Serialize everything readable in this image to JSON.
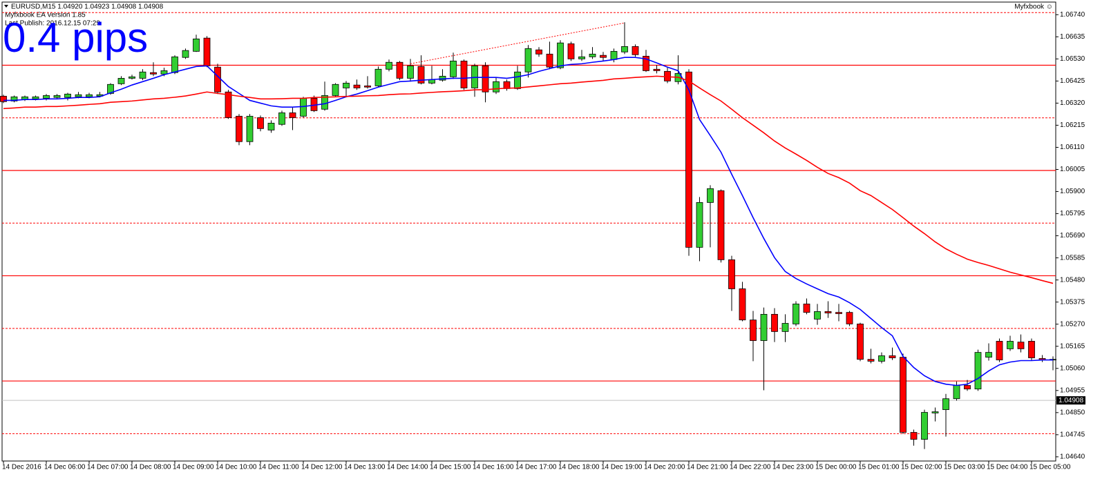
{
  "chart_data": {
    "type": "candlestick",
    "header": "EURUSD,M15  1.04920 1.04923 1.04908 1.04908",
    "ea_version": "Myfxbook EA Version 1.85",
    "last_publish": "Last Publish: 2016.12.15 07:29",
    "annotation": "0.4 pips",
    "brand": "Myfxbook ☺",
    "categories": [
      "14 Dec 2016",
      null,
      null,
      null,
      "14 Dec 06:00",
      null,
      null,
      null,
      "14 Dec 07:00",
      null,
      null,
      null,
      "14 Dec 08:00",
      null,
      null,
      null,
      "14 Dec 09:00",
      null,
      null,
      null,
      "14 Dec 10:00",
      null,
      null,
      null,
      "14 Dec 11:00",
      null,
      null,
      null,
      "14 Dec 12:00",
      null,
      null,
      null,
      "14 Dec 13:00",
      null,
      null,
      null,
      "14 Dec 14:00",
      null,
      null,
      null,
      "14 Dec 15:00",
      null,
      null,
      null,
      "14 Dec 16:00",
      null,
      null,
      null,
      "14 Dec 17:00",
      null,
      null,
      null,
      "14 Dec 18:00",
      null,
      null,
      null,
      "14 Dec 19:00",
      null,
      null,
      null,
      "14 Dec 20:00",
      null,
      null,
      null,
      "14 Dec 21:00",
      null,
      null,
      null,
      "14 Dec 22:00",
      null,
      null,
      null,
      "14 Dec 23:00",
      null,
      null,
      null,
      "15 Dec 00:00",
      null,
      null,
      null,
      "15 Dec 01:00",
      null,
      null,
      null,
      "15 Dec 02:00",
      null,
      null,
      null,
      "15 Dec 03:00",
      null,
      null,
      null,
      "15 Dec 04:00",
      null,
      null,
      null,
      "15 Dec 05:00",
      null,
      null
    ],
    "open": [
      1.06353,
      1.0633,
      1.06337,
      1.0634,
      1.06343,
      1.06347,
      1.06347,
      1.0635,
      1.0635,
      1.06353,
      1.06366,
      1.06412,
      1.06438,
      1.06438,
      1.06465,
      1.06458,
      1.06465,
      1.06537,
      1.06566,
      1.06629,
      1.06491,
      1.06373,
      1.06258,
      1.06137,
      1.06251,
      1.06192,
      1.06219,
      1.06274,
      1.06258,
      1.06343,
      1.06291,
      1.06356,
      1.06392,
      1.06406,
      1.06402,
      1.06402,
      1.06481,
      1.06514,
      1.06438,
      1.06494,
      1.06415,
      1.06429,
      1.06445,
      1.0652,
      1.06392,
      1.06497,
      1.06373,
      1.06422,
      1.06389,
      1.06468,
      1.06573,
      1.06553,
      1.06488,
      1.06602,
      1.0653,
      1.0654,
      1.06547,
      1.06527,
      1.06563,
      1.06589,
      1.06543,
      1.06481,
      1.06471,
      1.06422,
      1.06468,
      1.05635,
      1.05848,
      1.05904,
      1.05576,
      1.05438,
      1.0529,
      1.05192,
      1.05317,
      1.05235,
      1.05271,
      1.05366,
      1.05294,
      1.0533,
      1.05326,
      1.05326,
      1.05271,
      1.05103,
      1.05094,
      1.0512,
      1.05113,
      1.04756,
      1.04723,
      1.04848,
      1.04864,
      1.04916,
      1.04979,
      1.04962,
      1.05113,
      1.05189,
      1.05153,
      1.05185,
      1.05189,
      1.05107,
      1.051
    ],
    "high": [
      1.0636,
      1.06356,
      1.06356,
      1.06356,
      1.06363,
      1.06363,
      1.06369,
      1.06373,
      1.06369,
      1.06373,
      1.06415,
      1.06448,
      1.06455,
      1.06481,
      1.06514,
      1.06488,
      1.06547,
      1.06579,
      1.06645,
      1.06638,
      1.06507,
      1.06383,
      1.06268,
      1.06268,
      1.06261,
      1.06238,
      1.06284,
      1.06301,
      1.0635,
      1.06356,
      1.06422,
      1.06415,
      1.06425,
      1.06432,
      1.06448,
      1.06494,
      1.06527,
      1.0652,
      1.0653,
      1.06547,
      1.06497,
      1.06481,
      1.0656,
      1.06527,
      1.06507,
      1.06514,
      1.06442,
      1.06432,
      1.06497,
      1.06596,
      1.06586,
      1.06612,
      1.06619,
      1.06612,
      1.06573,
      1.06586,
      1.06563,
      1.06579,
      1.06704,
      1.06599,
      1.06573,
      1.06501,
      1.06488,
      1.06547,
      1.06481,
      1.05874,
      1.0593,
      1.0591,
      1.05595,
      1.05471,
      1.05333,
      1.05349,
      1.05346,
      1.05317,
      1.05379,
      1.05392,
      1.05366,
      1.05379,
      1.05366,
      1.05333,
      1.05277,
      1.05153,
      1.05136,
      1.05159,
      1.0513,
      1.04769,
      1.04864,
      1.04874,
      1.04939,
      1.04998,
      1.05005,
      1.05149,
      1.05179,
      1.05202,
      1.05215,
      1.05221,
      1.05202,
      1.05123,
      1.05117
    ],
    "low": [
      1.0632,
      1.06324,
      1.0633,
      1.06333,
      1.06333,
      1.0634,
      1.06333,
      1.06343,
      1.06343,
      1.06347,
      1.0636,
      1.06406,
      1.06432,
      1.06429,
      1.06448,
      1.06448,
      1.06458,
      1.0653,
      1.06563,
      1.06491,
      1.06363,
      1.06245,
      1.0612,
      1.0612,
      1.06186,
      1.06179,
      1.06212,
      1.06192,
      1.06251,
      1.06278,
      1.06284,
      1.0635,
      1.0635,
      1.06383,
      1.06389,
      1.06396,
      1.06471,
      1.06429,
      1.06422,
      1.06409,
      1.06409,
      1.06422,
      1.06435,
      1.06383,
      1.0635,
      1.06324,
      1.06363,
      1.06379,
      1.06383,
      1.06442,
      1.0654,
      1.06481,
      1.06481,
      1.0652,
      1.0652,
      1.0653,
      1.0652,
      1.06514,
      1.06553,
      1.0654,
      1.06468,
      1.06461,
      1.06415,
      1.06409,
      1.05595,
      1.05569,
      1.05635,
      1.05563,
      1.05333,
      1.05284,
      1.05094,
      1.04956,
      1.05185,
      1.05185,
      1.05261,
      1.05317,
      1.05267,
      1.053,
      1.05284,
      1.05261,
      1.05094,
      1.05084,
      1.05084,
      1.051,
      1.04749,
      1.04693,
      1.04677,
      1.04808,
      1.04736,
      1.04907,
      1.04953,
      1.04953,
      1.05097,
      1.0509,
      1.05143,
      1.05136,
      1.05097,
      1.0509,
      1.05051
    ],
    "close": [
      1.06327,
      1.0635,
      1.0635,
      1.0635,
      1.06356,
      1.06356,
      1.06363,
      1.0636,
      1.0636,
      1.0636,
      1.06409,
      1.06438,
      1.06445,
      1.06468,
      1.06458,
      1.06474,
      1.0654,
      1.0657,
      1.06625,
      1.06497,
      1.06373,
      1.06251,
      1.06137,
      1.06258,
      1.06199,
      1.06225,
      1.06274,
      1.06251,
      1.06343,
      1.06284,
      1.06356,
      1.06409,
      1.06415,
      1.06392,
      1.06396,
      1.06481,
      1.06514,
      1.06438,
      1.06497,
      1.06415,
      1.06432,
      1.06448,
      1.0652,
      1.06392,
      1.06497,
      1.06373,
      1.06422,
      1.06389,
      1.06468,
      1.06579,
      1.06553,
      1.06491,
      1.06606,
      1.0653,
      1.0654,
      1.06553,
      1.06537,
      1.06566,
      1.06589,
      1.0655,
      1.06474,
      1.06474,
      1.06425,
      1.06461,
      1.05635,
      1.05848,
      1.05914,
      1.05576,
      1.05438,
      1.0529,
      1.05192,
      1.05317,
      1.05235,
      1.05274,
      1.05366,
      1.05326,
      1.0533,
      1.05323,
      1.0532,
      1.05271,
      1.05103,
      1.05094,
      1.0512,
      1.0511,
      1.04756,
      1.04723,
      1.04851,
      1.04854,
      1.04916,
      1.04979,
      1.04962,
      1.05136,
      1.05136,
      1.051,
      1.05189,
      1.05153,
      1.0511,
      1.051,
      1.05103
    ],
    "bull_color": "#32cd32",
    "bear_color": "#ff0000",
    "overlays": [
      {
        "color": "#0000ff",
        "values": [
          1.06333,
          1.06333,
          1.06337,
          1.06337,
          1.0634,
          1.0634,
          1.06343,
          1.06347,
          1.06347,
          1.0635,
          1.06369,
          1.06386,
          1.06406,
          1.06422,
          1.06438,
          1.06455,
          1.06468,
          1.06481,
          1.06494,
          1.06497,
          1.06448,
          1.06399,
          1.06366,
          1.06333,
          1.0632,
          1.06307,
          1.06301,
          1.06301,
          1.06304,
          1.0631,
          1.06317,
          1.06333,
          1.0635,
          1.06363,
          1.06379,
          1.06396,
          1.06409,
          1.06422,
          1.06425,
          1.06429,
          1.06432,
          1.06435,
          1.06438,
          1.06438,
          1.06442,
          1.06442,
          1.06442,
          1.06438,
          1.06445,
          1.06455,
          1.06471,
          1.06484,
          1.06497,
          1.06504,
          1.06507,
          1.06514,
          1.0652,
          1.06527,
          1.06537,
          1.06537,
          1.0653,
          1.06511,
          1.06491,
          1.06474,
          1.06383,
          1.06242,
          1.06166,
          1.06087,
          1.05982,
          1.05881,
          1.05776,
          1.05677,
          1.05586,
          1.0552,
          1.05487,
          1.05461,
          1.05438,
          1.05415,
          1.05399,
          1.05372,
          1.0534,
          1.05297,
          1.05254,
          1.05215,
          1.05117,
          1.05064,
          1.05025,
          1.04998,
          1.04985,
          1.04979,
          1.04985,
          1.05012,
          1.05048,
          1.05077,
          1.0509,
          1.05097,
          1.05097,
          1.051,
          1.051
        ]
      },
      {
        "color": "#ff0000",
        "values": [
          1.06294,
          1.06297,
          1.06301,
          1.06301,
          1.06304,
          1.06304,
          1.06307,
          1.0631,
          1.06314,
          1.06317,
          1.06324,
          1.06327,
          1.0633,
          1.06335,
          1.0634,
          1.06343,
          1.06348,
          1.06354,
          1.06363,
          1.06373,
          1.06366,
          1.0636,
          1.06353,
          1.06347,
          1.0634,
          1.0634,
          1.06341,
          1.06343,
          1.06343,
          1.06347,
          1.06348,
          1.0635,
          1.06352,
          1.06353,
          1.06355,
          1.06356,
          1.0636,
          1.06363,
          1.06364,
          1.06368,
          1.06371,
          1.06374,
          1.06376,
          1.06379,
          1.06383,
          1.06384,
          1.06388,
          1.06391,
          1.06392,
          1.06397,
          1.06402,
          1.06407,
          1.06412,
          1.06415,
          1.0642,
          1.06424,
          1.06428,
          1.06435,
          1.06438,
          1.06442,
          1.06445,
          1.06448,
          1.06445,
          1.06443,
          1.06425,
          1.06392,
          1.0636,
          1.0633,
          1.06291,
          1.06251,
          1.06215,
          1.06179,
          1.0614,
          1.06107,
          1.06078,
          1.06048,
          1.06015,
          1.05986,
          1.05966,
          1.0594,
          1.05904,
          1.05881,
          1.05848,
          1.05815,
          1.05776,
          1.05736,
          1.057,
          1.05661,
          1.05628,
          1.05602,
          1.05579,
          1.05563,
          1.05549,
          1.05533,
          1.05517,
          1.05504,
          1.05491,
          1.05477,
          1.05464
        ]
      }
    ],
    "levels_solid": [
      1.065,
      1.06,
      1.055,
      1.05
    ],
    "levels_dashed": [
      1.0675,
      1.0625,
      1.0575,
      1.0525,
      1.0475
    ],
    "level_color": "#ff0000",
    "trendline": {
      "x": [
        38,
        58
      ],
      "values": [
        1.06507,
        1.06701
      ],
      "color": "#ff0000"
    },
    "current_price": 1.04908,
    "ylim": [
      1.0462,
      1.068
    ],
    "yticks": [
      {
        "value": 1.0674,
        "label": "1.06740"
      },
      1.06635,
      {
        "value": 1.0653,
        "label": "1.06530"
      },
      1.06425,
      {
        "value": 1.0632,
        "label": "1.06320"
      },
      1.06215,
      {
        "value": 1.0611,
        "label": "1.06110"
      },
      1.06005,
      {
        "value": 1.059,
        "label": "1.05900"
      },
      1.05795,
      {
        "value": 1.0569,
        "label": "1.05690"
      },
      1.05585,
      {
        "value": 1.0548,
        "label": "1.05480"
      },
      1.05375,
      {
        "value": 1.0527,
        "label": "1.05270"
      },
      1.05165,
      {
        "value": 1.0506,
        "label": "1.05060"
      },
      1.04955,
      {
        "value": 1.0485,
        "label": "1.04850"
      },
      1.04745,
      {
        "value": 1.0464,
        "label": "1.04640"
      }
    ],
    "grid": false
  }
}
